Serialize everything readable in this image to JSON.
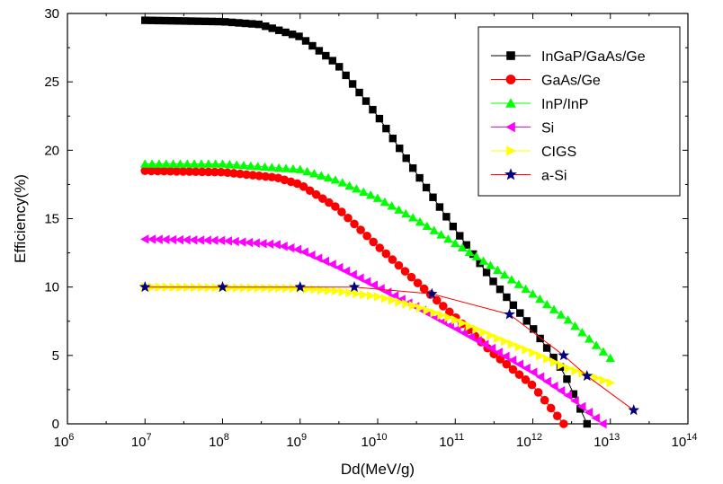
{
  "chart_data": {
    "type": "scatter",
    "xlabel": "Dd(MeV/g)",
    "ylabel": "Efficiency(%)",
    "xscale": "log",
    "xlim": [
      1000000.0,
      100000000000000.0
    ],
    "ylim": [
      0,
      30
    ],
    "x_ticks": [
      {
        "value": 1000000.0,
        "base": "10",
        "exp": "6"
      },
      {
        "value": 10000000.0,
        "base": "10",
        "exp": "7"
      },
      {
        "value": 100000000.0,
        "base": "10",
        "exp": "8"
      },
      {
        "value": 1000000000.0,
        "base": "10",
        "exp": "9"
      },
      {
        "value": 10000000000.0,
        "base": "10",
        "exp": "10"
      },
      {
        "value": 100000000000.0,
        "base": "10",
        "exp": "11"
      },
      {
        "value": 1000000000000.0,
        "base": "10",
        "exp": "12"
      },
      {
        "value": 10000000000000.0,
        "base": "10",
        "exp": "13"
      },
      {
        "value": 100000000000000.0,
        "base": "10",
        "exp": "14"
      }
    ],
    "y_ticks": [
      0,
      5,
      10,
      15,
      20,
      25,
      30
    ],
    "grid": false,
    "legend_position": "top-right",
    "series": [
      {
        "name": "InGaP/GaAs/Ge",
        "color": "#000000",
        "marker": "square",
        "x_range": [
          10000000.0,
          5000000000000.0
        ],
        "points": [
          [
            10000000.0,
            29.5
          ],
          [
            100000000.0,
            29.4
          ],
          [
            300000000.0,
            29.2
          ],
          [
            1000000000.0,
            28.3
          ],
          [
            3000000000.0,
            26.3
          ],
          [
            10000000000.0,
            22.5
          ],
          [
            30000000000.0,
            18.5
          ],
          [
            100000000000.0,
            14.2
          ],
          [
            300000000000.0,
            10.5
          ],
          [
            1000000000000.0,
            7.0
          ],
          [
            2500000000000.0,
            3.8
          ],
          [
            5000000000000.0,
            0
          ]
        ]
      },
      {
        "name": "GaAs/Ge",
        "color": "#ff0000",
        "marker": "circle",
        "x_range": [
          10000000.0,
          2500000000000.0
        ],
        "points": [
          [
            10000000.0,
            18.5
          ],
          [
            100000000.0,
            18.4
          ],
          [
            500000000.0,
            18.0
          ],
          [
            1000000000.0,
            17.5
          ],
          [
            3000000000.0,
            15.8
          ],
          [
            10000000000.0,
            13.0
          ],
          [
            30000000000.0,
            10.5
          ],
          [
            100000000000.0,
            7.8
          ],
          [
            300000000000.0,
            5.2
          ],
          [
            1000000000000.0,
            2.8
          ],
          [
            2500000000000.0,
            0
          ]
        ]
      },
      {
        "name": "InP/InP",
        "color": "#00ff00",
        "marker": "triangle-up",
        "x_range": [
          10000000.0,
          10000000000000.0
        ],
        "points": [
          [
            10000000.0,
            19.0
          ],
          [
            100000000.0,
            19.0
          ],
          [
            1000000000.0,
            18.6
          ],
          [
            3000000000.0,
            17.8
          ],
          [
            10000000000.0,
            16.5
          ],
          [
            30000000000.0,
            15.0
          ],
          [
            100000000000.0,
            13.2
          ],
          [
            300000000000.0,
            11.5
          ],
          [
            1000000000000.0,
            9.5
          ],
          [
            3000000000000.0,
            7.5
          ],
          [
            10000000000000.0,
            4.8
          ]
        ]
      },
      {
        "name": "Si",
        "color": "#ff00ff",
        "marker": "triangle-left",
        "x_range": [
          10000000.0,
          8000000000000.0
        ],
        "points": [
          [
            10000000.0,
            13.5
          ],
          [
            100000000.0,
            13.4
          ],
          [
            500000000.0,
            13.1
          ],
          [
            1000000000.0,
            12.7
          ],
          [
            3000000000.0,
            11.5
          ],
          [
            10000000000.0,
            10.0
          ],
          [
            30000000000.0,
            8.6
          ],
          [
            100000000000.0,
            7.0
          ],
          [
            300000000000.0,
            5.5
          ],
          [
            1000000000000.0,
            3.8
          ],
          [
            3000000000000.0,
            2.0
          ],
          [
            8000000000000.0,
            0
          ]
        ]
      },
      {
        "name": "CIGS",
        "color": "#ffff00",
        "marker": "triangle-right",
        "x_range": [
          10000000.0,
          10000000000000.0
        ],
        "points": [
          [
            10000000.0,
            10.0
          ],
          [
            1000000000.0,
            9.9
          ],
          [
            3000000000.0,
            9.7
          ],
          [
            10000000000.0,
            9.3
          ],
          [
            30000000000.0,
            8.6
          ],
          [
            100000000000.0,
            7.6
          ],
          [
            300000000000.0,
            6.4
          ],
          [
            1000000000000.0,
            5.2
          ],
          [
            3000000000000.0,
            4.0
          ],
          [
            10000000000000.0,
            3.0
          ]
        ]
      },
      {
        "name": "a-Si",
        "color": "#ff0000",
        "marker_color": "#000080",
        "marker": "star",
        "points": [
          [
            10000000.0,
            10.0
          ],
          [
            100000000.0,
            10.0
          ],
          [
            1000000000.0,
            10.0
          ],
          [
            5000000000.0,
            10.0
          ],
          [
            50000000000.0,
            9.5
          ],
          [
            500000000000.0,
            8.0
          ],
          [
            2500000000000.0,
            5.0
          ],
          [
            5000000000000.0,
            3.5
          ],
          [
            20000000000000.0,
            1.0
          ]
        ]
      }
    ]
  }
}
